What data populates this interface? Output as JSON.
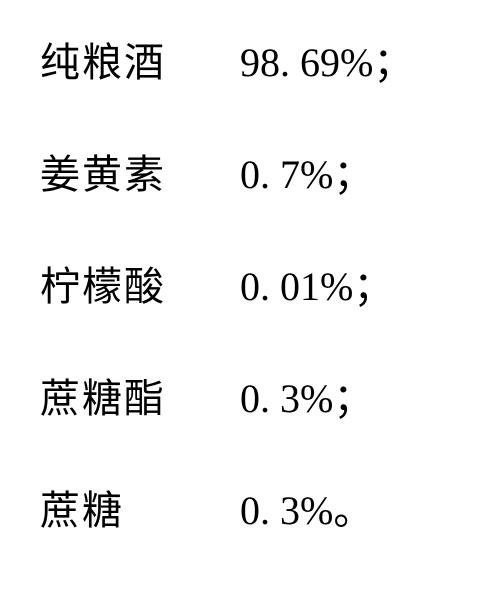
{
  "document": {
    "type": "ingredient-list",
    "font_family_cjk": "SimSun",
    "font_family_latin": "Times New Roman",
    "font_size": 40,
    "text_color": "#000000",
    "background_color": "#ffffff",
    "row_gap": 54,
    "name_column_width": 200,
    "rows": [
      {
        "name": "纯粮酒",
        "value": "98. 69%",
        "punct": "；"
      },
      {
        "name": "姜黄素",
        "value": "0. 7%",
        "punct": "；"
      },
      {
        "name": "柠檬酸",
        "value": "0. 01%",
        "punct": "；"
      },
      {
        "name": "蔗糖酯",
        "value": "0. 3%",
        "punct": "；"
      },
      {
        "name": "蔗糖",
        "value": "0. 3%",
        "punct": "。"
      }
    ]
  }
}
